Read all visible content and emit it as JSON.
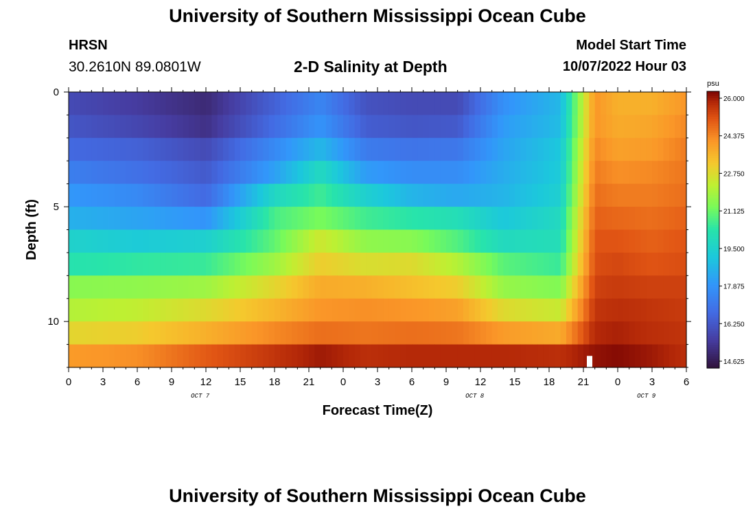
{
  "header": {
    "title": "University of Southern Mississippi Ocean Cube",
    "station": "HRSN",
    "coordinates": "30.2610N  89.0801W",
    "subtitle": "2-D Salinity at Depth",
    "model_start_label": "Model Start Time",
    "model_start_value": "10/07/2022 Hour 03"
  },
  "footer": {
    "title": "University of Southern Mississippi Ocean Cube"
  },
  "chart_data": {
    "type": "heatmap",
    "title": "2-D Salinity at Depth",
    "xlabel": "Forecast Time(Z)",
    "ylabel": "Depth (ft)",
    "x_range_hours": [
      0,
      54
    ],
    "y_range_ft": [
      0,
      12
    ],
    "x_tick_labels": [
      "0",
      "3",
      "6",
      "9",
      "12",
      "15",
      "18",
      "21",
      "0",
      "3",
      "6",
      "9",
      "12",
      "15",
      "18",
      "21",
      "0",
      "3",
      "6"
    ],
    "y_tick_labels": [
      "0",
      "5",
      "10"
    ],
    "date_labels": [
      {
        "label": "OCT 7",
        "hour": 11.5
      },
      {
        "label": "OCT 8",
        "hour": 35.5
      },
      {
        "label": "OCT 9",
        "hour": 50.5
      }
    ],
    "colorbar": {
      "unit": "psu",
      "ticks": [
        "26.000",
        "24.375",
        "22.750",
        "21.125",
        "19.500",
        "17.875",
        "16.250",
        "14.625"
      ],
      "min": 14.0,
      "max": 26.2
    },
    "depth_levels_ft": [
      0.5,
      1.5,
      2.5,
      3.5,
      4.5,
      5.5,
      6.5,
      7.5,
      8.5,
      9.5,
      10.5,
      11.5
    ],
    "time_hours": [
      0,
      6,
      12,
      18,
      22,
      26,
      30,
      34,
      38,
      43,
      46,
      48,
      51,
      54
    ],
    "salinity": [
      [
        15.6,
        15.2,
        14.7,
        16.2,
        17.2,
        15.8,
        15.6,
        15.6,
        17.5,
        18.5,
        24.0,
        23.5,
        23.5,
        24.0
      ],
      [
        15.9,
        15.5,
        14.9,
        16.5,
        17.6,
        16.1,
        15.9,
        16.0,
        17.8,
        18.6,
        24.0,
        23.6,
        23.7,
        24.2
      ],
      [
        16.4,
        16.2,
        15.6,
        17.3,
        18.5,
        16.9,
        16.7,
        16.8,
        18.0,
        18.9,
        24.2,
        23.8,
        23.9,
        24.4
      ],
      [
        17.0,
        16.6,
        16.0,
        17.9,
        19.6,
        17.8,
        17.4,
        17.4,
        18.2,
        19.0,
        24.4,
        24.1,
        24.2,
        24.5
      ],
      [
        17.7,
        17.3,
        16.4,
        19.5,
        20.4,
        19.2,
        18.4,
        18.1,
        18.4,
        19.2,
        24.6,
        24.4,
        24.4,
        24.6
      ],
      [
        18.3,
        18.0,
        17.6,
        20.5,
        21.1,
        20.4,
        20.1,
        19.8,
        18.9,
        19.6,
        24.8,
        24.7,
        24.6,
        24.8
      ],
      [
        19.3,
        19.0,
        19.2,
        20.8,
        22.3,
        21.4,
        21.3,
        20.6,
        19.6,
        19.8,
        25.0,
        25.0,
        24.8,
        25.0
      ],
      [
        20.0,
        20.2,
        20.3,
        21.6,
        22.9,
        22.5,
        22.6,
        21.9,
        20.7,
        20.3,
        25.1,
        25.2,
        25.0,
        25.1
      ],
      [
        21.3,
        21.4,
        21.6,
        22.7,
        23.6,
        23.5,
        23.2,
        22.9,
        21.5,
        21.2,
        25.3,
        25.4,
        25.3,
        25.3
      ],
      [
        21.9,
        22.1,
        22.6,
        23.4,
        24.0,
        24.1,
        24.0,
        23.8,
        22.6,
        22.2,
        25.5,
        25.6,
        25.5,
        25.4
      ],
      [
        22.7,
        22.9,
        23.5,
        24.2,
        24.6,
        24.5,
        24.6,
        24.5,
        23.9,
        23.6,
        25.7,
        25.8,
        25.6,
        25.5
      ],
      [
        23.9,
        24.1,
        24.9,
        25.5,
        25.9,
        25.6,
        25.7,
        25.7,
        25.7,
        25.6,
        26.0,
        26.1,
        25.9,
        25.6
      ]
    ]
  }
}
